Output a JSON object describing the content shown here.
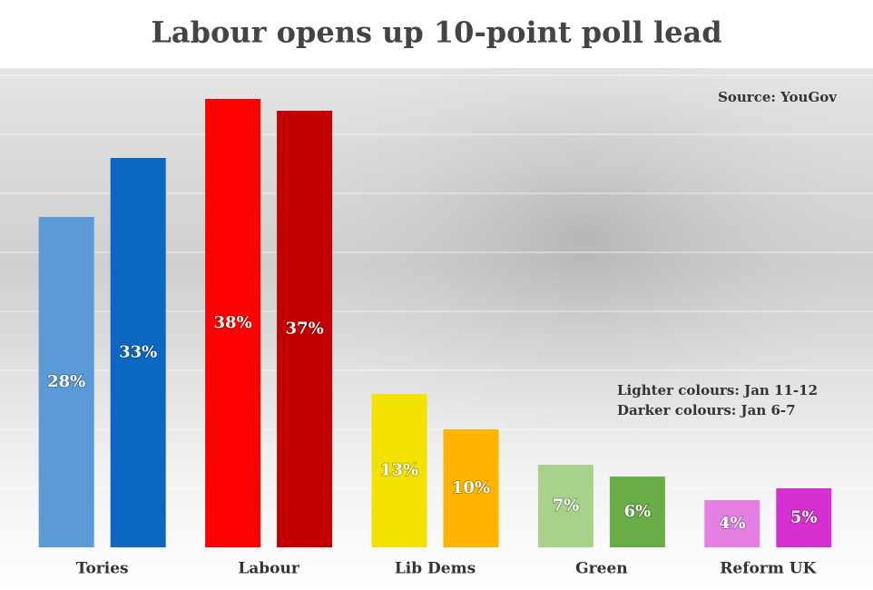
{
  "chart_data": {
    "type": "bar",
    "title": "Labour opens up 10-point poll lead",
    "source": "Source: YouGov",
    "categories": [
      "Tories",
      "Labour",
      "Lib Dems",
      "Green",
      "Reform UK"
    ],
    "series": [
      {
        "name": "Lighter colours: Jan 11-12",
        "colors": [
          "#5b9bd5",
          "#ff0000",
          "#f2e200",
          "#a8d18a",
          "#e57fe3"
        ],
        "values": [
          28,
          38,
          13,
          7,
          4
        ],
        "value_labels": [
          "28%",
          "38%",
          "13%",
          "7%",
          "4%"
        ]
      },
      {
        "name": "Darker colours: Jan 6-7",
        "colors": [
          "#0b67c0",
          "#c20000",
          "#ffb400",
          "#6aac46",
          "#d530d0"
        ],
        "values": [
          33,
          37,
          10,
          6,
          5
        ],
        "value_labels": [
          "33%",
          "37%",
          "10%",
          "6%",
          "5%"
        ]
      }
    ],
    "ylim": [
      0,
      40
    ],
    "yticks": [
      0,
      5,
      10,
      15,
      20,
      25,
      30,
      35,
      40
    ],
    "grid": true
  }
}
